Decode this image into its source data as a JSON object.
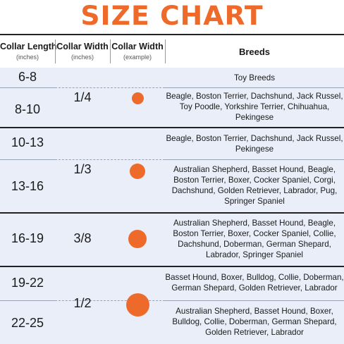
{
  "title": "SIZE CHART",
  "headers": {
    "length": "Collar Length",
    "length_unit": "(inches)",
    "width": "Collar Width",
    "width_unit": "(inches)",
    "example": "Collar Width",
    "example_unit": "(example)",
    "breeds": "Breeds"
  },
  "groups": [
    {
      "width": "1/4",
      "rows": [
        {
          "length": "6-8",
          "breeds": "Toy Breeds"
        },
        {
          "length": "8-10",
          "breeds": "Beagle, Boston Terrier, Dachshund, Jack Russel, Toy Poodle, Yorkshire Terrier, Chihuahua, Pekingese"
        }
      ]
    },
    {
      "width": "1/3",
      "rows": [
        {
          "length": "10-13",
          "breeds": "Beagle, Boston Terrier, Dachshund, Jack Russel, Pekingese"
        },
        {
          "length": "13-16",
          "breeds": "Australian Shepherd, Basset Hound, Beagle, Boston Terrier, Boxer, Cocker Spaniel, Corgi, Dachshund, Golden Retriever, Labrador, Pug, Springer Spaniel"
        }
      ]
    },
    {
      "width": "3/8",
      "rows": [
        {
          "length": "16-19",
          "breeds": "Australian Shepherd, Basset Hound, Beagle, Boston Terrier, Boxer, Cocker Spaniel, Collie, Dachshund, Doberman, German Shepard, Labrador, Springer Spaniel"
        }
      ]
    },
    {
      "width": "1/2",
      "rows": [
        {
          "length": "19-22",
          "breeds": "Basset Hound, Boxer, Bulldog, Collie, Doberman, German Shepard, Golden Retriever, Labrador"
        },
        {
          "length": "22-25",
          "breeds": "Australian Shepherd, Basset Hound, Boxer, Bulldog, Collie, Doberman, German Shepard, Golden Retriever, Labrador"
        }
      ]
    }
  ],
  "colors": {
    "accent": "#ee6a2a",
    "band": "#e9eef8",
    "rule": "#222222"
  }
}
